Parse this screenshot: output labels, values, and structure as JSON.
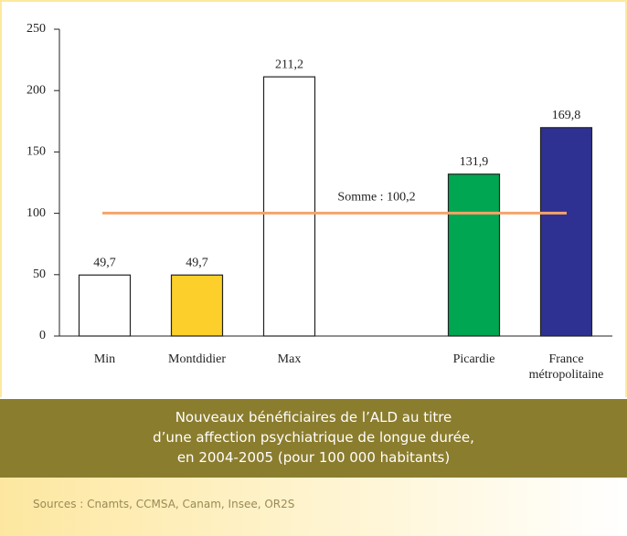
{
  "chart_data": {
    "type": "bar",
    "categories": [
      "Min",
      "Montdidier",
      "Max",
      null,
      "Picardie",
      "France métropolitaine"
    ],
    "values": [
      49.7,
      49.7,
      211.2,
      null,
      131.9,
      169.8
    ],
    "value_labels": [
      "49,7",
      "49,7",
      "211,2",
      null,
      "131,9",
      "169,8"
    ],
    "colors": [
      "#ffffff",
      "#fccf2a",
      "#ffffff",
      null,
      "#00a651",
      "#2e3192"
    ],
    "ylim": [
      0,
      250
    ],
    "yticks": [
      0,
      50,
      100,
      150,
      200,
      250
    ],
    "reference_line": {
      "value": 100.2,
      "label": "Somme : 100,2",
      "color": "#f4a46a"
    },
    "caption": [
      "Nouveaux bénéficiaires de l’ALD au titre",
      "d’une affection psychiatrique de longue durée,",
      "en 2004-2005 (pour 100 000 habitants)"
    ],
    "source": "Sources : Cnamts, CCMSA, Canam, Insee, OR2S"
  }
}
